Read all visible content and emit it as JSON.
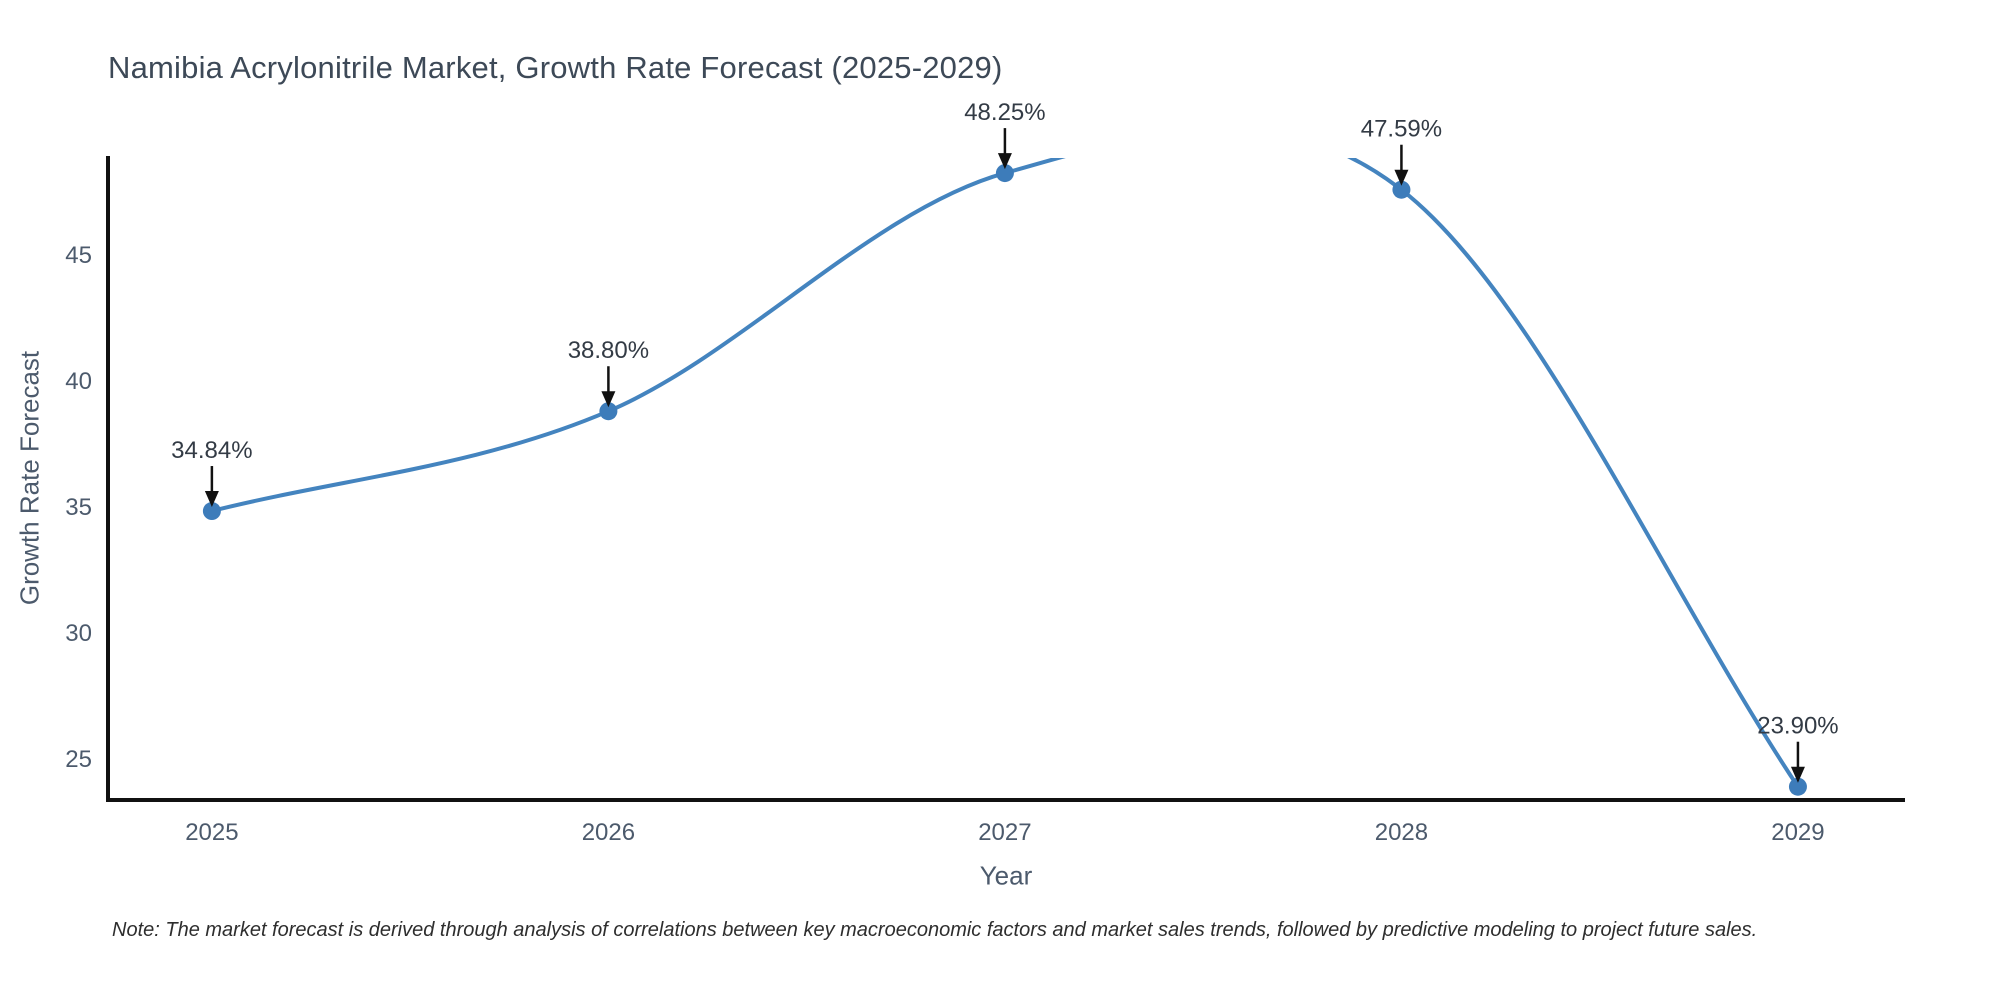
{
  "title": "Namibia Acrylonitrile Market, Growth Rate Forecast (2025-2029)",
  "note": "Note: The market forecast is derived through analysis of correlations between key macroeconomic factors and market sales trends, followed by predictive modeling to project future sales.",
  "chart_data": {
    "type": "line",
    "line_shape": "spline",
    "title": "Namibia Acrylonitrile Market, Growth Rate Forecast (2025-2029)",
    "xlabel": "Year",
    "ylabel": "Growth Rate Forecast",
    "x": [
      2025,
      2026,
      2027,
      2028,
      2029
    ],
    "values": [
      34.84,
      38.8,
      48.25,
      47.59,
      23.9
    ],
    "point_labels": [
      "34.84%",
      "38.80%",
      "48.25%",
      "47.59%",
      "23.90%"
    ],
    "x_tick_labels": [
      "2025",
      "2026",
      "2027",
      "2028",
      "2029"
    ],
    "y_ticks": [
      25,
      30,
      35,
      40,
      45
    ],
    "x_range": [
      2024.738,
      2029.27
    ],
    "y_range": [
      23.373,
      48.849
    ],
    "grid": false,
    "legend": false,
    "markers": true,
    "annotations_with_arrows": true,
    "note": "Note: The market forecast is derived through analysis of correlations between key macroeconomic factors and market sales trends, followed by predictive modeling to project future sales.",
    "colors": {
      "line": "#4484bf",
      "marker": "#3d7cba",
      "axis": "#111111",
      "tick_text": "#4c5a6c",
      "annotation_text": "#333b45",
      "arrow": "#111111",
      "title_text": "#3d4957",
      "background": "#ffffff"
    }
  }
}
